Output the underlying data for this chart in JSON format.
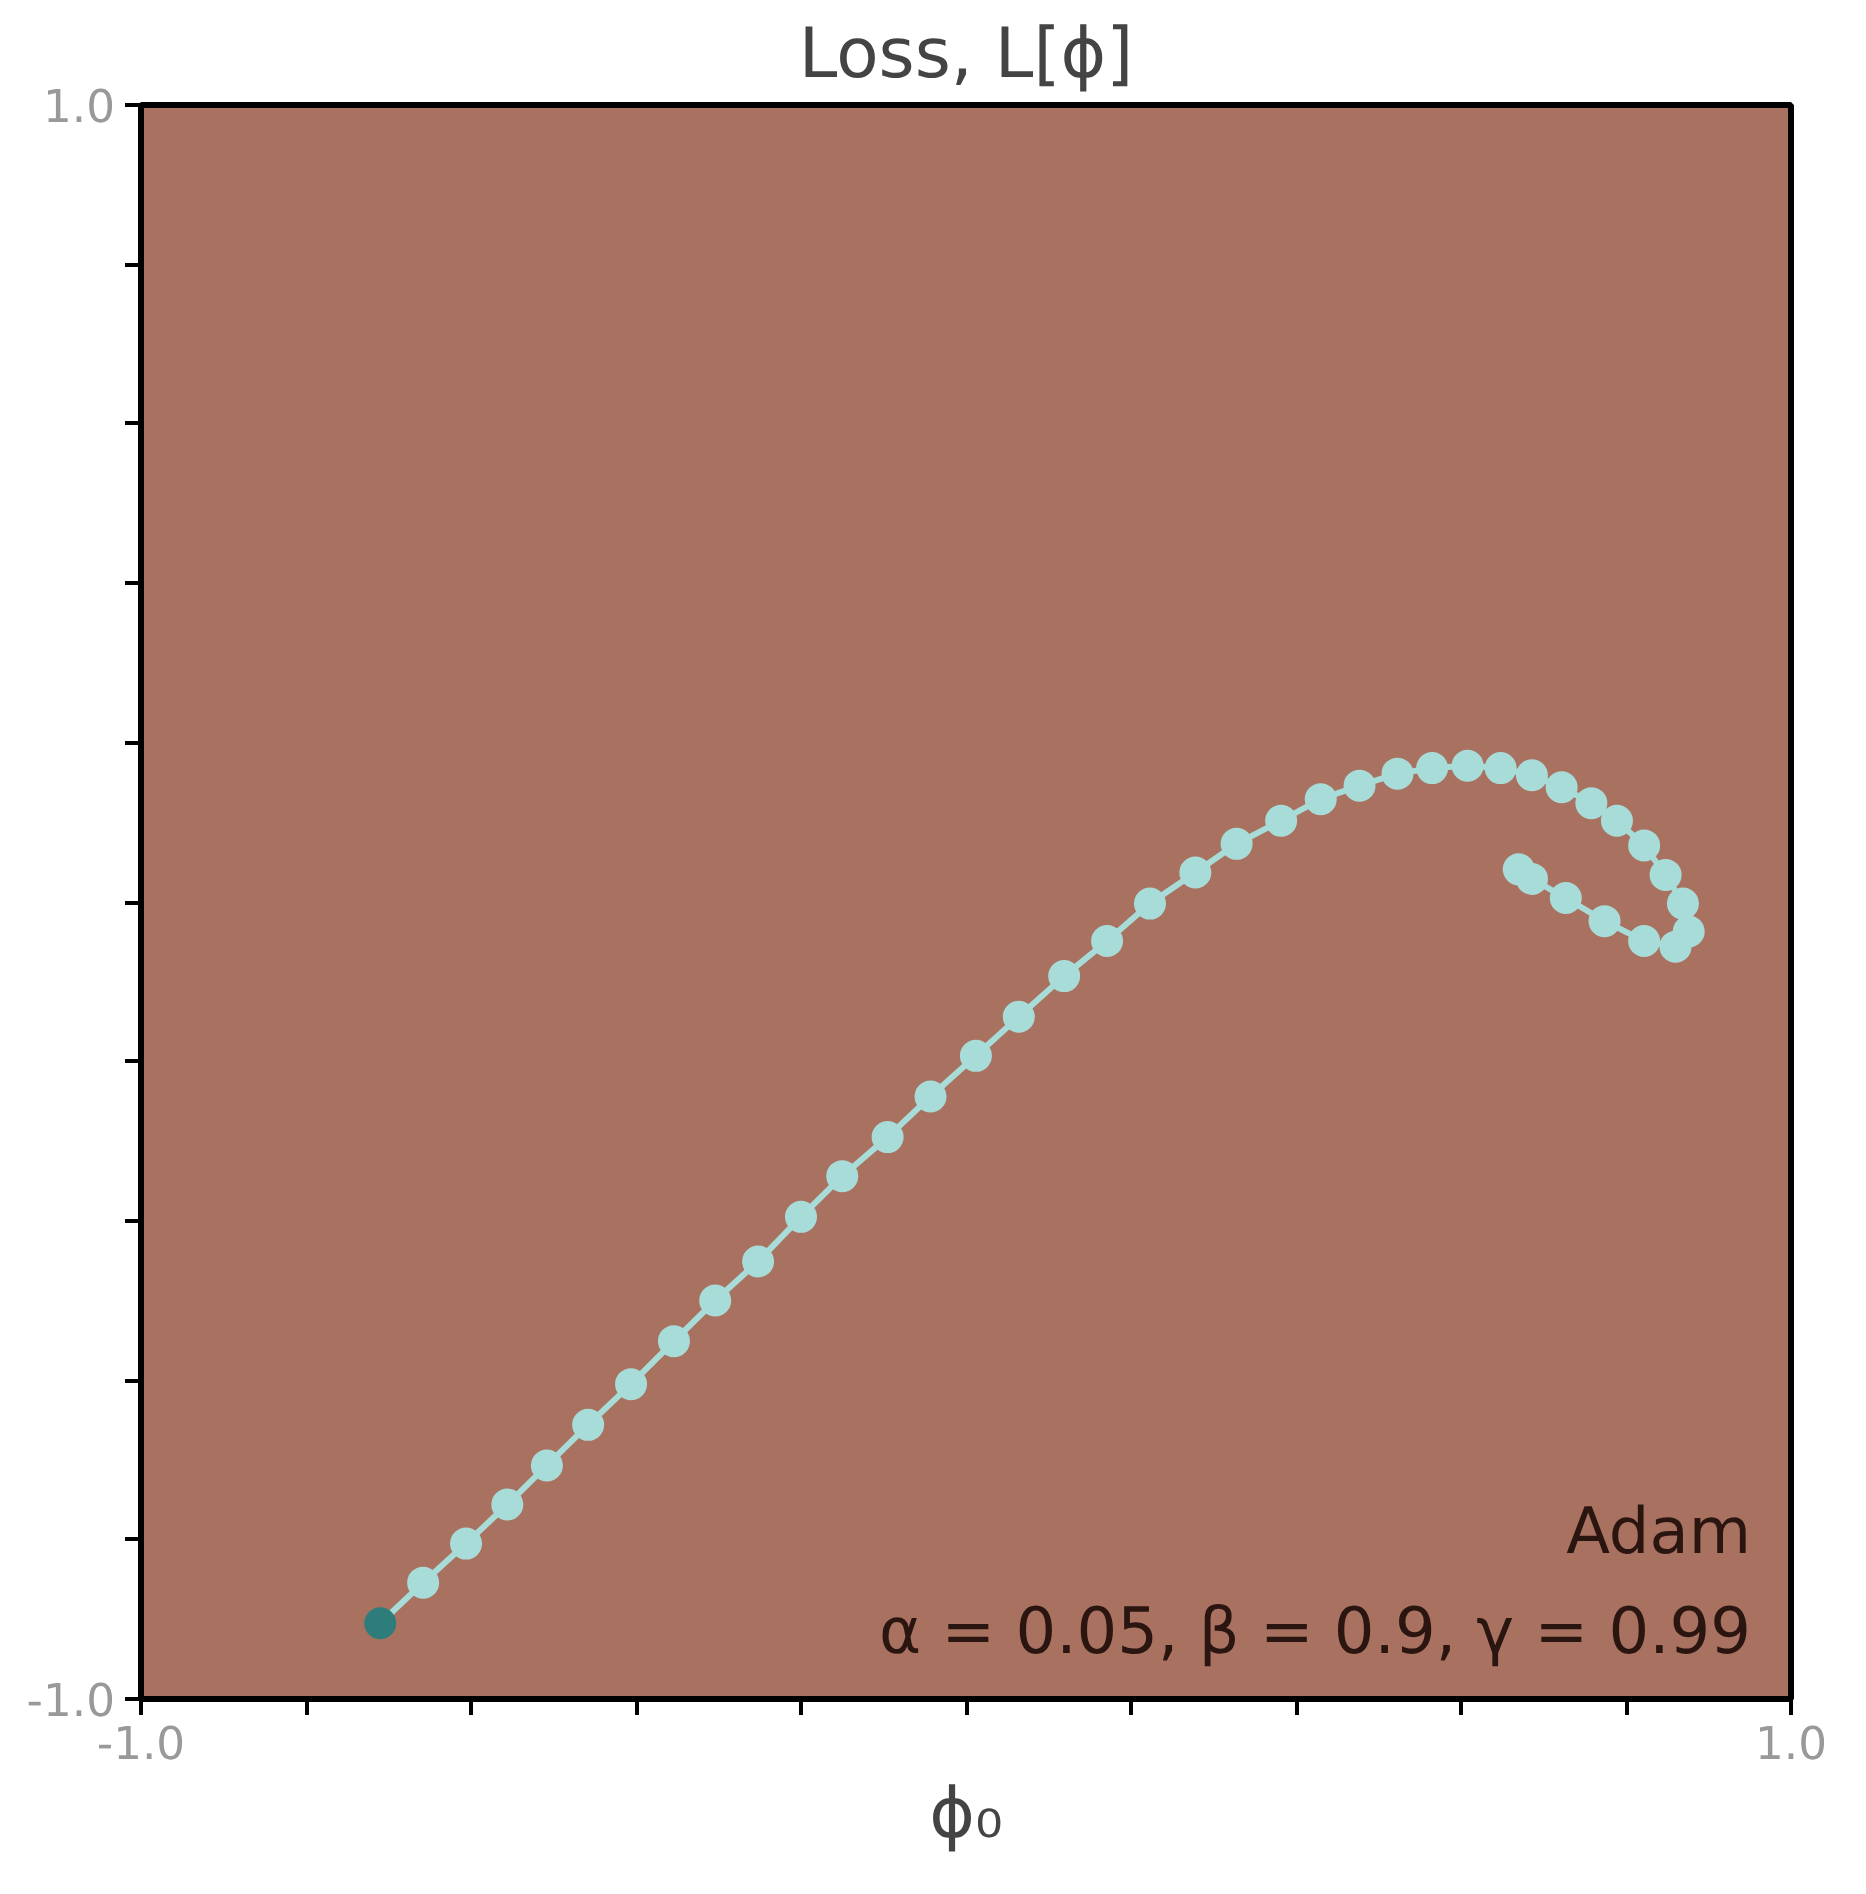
{
  "chart_data": {
    "type": "line",
    "title": "Loss, L[ϕ]",
    "xlabel": "ϕ₀",
    "xlim": [
      -1.0,
      1.0
    ],
    "ylim": [
      -1.0,
      1.0
    ],
    "xticks": [
      {
        "value": -1.0,
        "label": "-1.0"
      },
      {
        "value": -0.8,
        "label": null
      },
      {
        "value": -0.6,
        "label": null
      },
      {
        "value": -0.4,
        "label": null
      },
      {
        "value": -0.2,
        "label": null
      },
      {
        "value": 0.0,
        "label": null
      },
      {
        "value": 0.2,
        "label": null
      },
      {
        "value": 0.4,
        "label": null
      },
      {
        "value": 0.6,
        "label": null
      },
      {
        "value": 0.8,
        "label": null
      },
      {
        "value": 1.0,
        "label": "1.0"
      }
    ],
    "yticks": [
      {
        "value": -1.0,
        "label": "-1.0"
      },
      {
        "value": -0.8,
        "label": null
      },
      {
        "value": -0.6,
        "label": null
      },
      {
        "value": -0.4,
        "label": null
      },
      {
        "value": -0.2,
        "label": null
      },
      {
        "value": 0.0,
        "label": null
      },
      {
        "value": 0.2,
        "label": null
      },
      {
        "value": 0.4,
        "label": null
      },
      {
        "value": 0.6,
        "label": null
      },
      {
        "value": 0.8,
        "label": null
      },
      {
        "value": 1.0,
        "label": "1.0"
      }
    ],
    "grid": false,
    "marker": "circle",
    "line_style": "solid",
    "annotations": [
      "Adam",
      "α = 0.05, β = 0.9, γ = 0.99"
    ],
    "series": [
      {
        "color": "#a8dcd9",
        "colors": [
          "#2e7d7b",
          "#a8dcd9",
          "#a8dcd9",
          "#a8dcd9",
          "#a8dcd9",
          "#a8dcd9",
          "#a8dcd9",
          "#a8dcd9",
          "#a8dcd9",
          "#a8dcd9",
          "#a8dcd9",
          "#a8dcd9",
          "#a8dcd9",
          "#a8dcd9",
          "#a8dcd9",
          "#a8dcd9",
          "#a8dcd9",
          "#a8dcd9",
          "#a8dcd9",
          "#a8dcd9",
          "#a8dcd9",
          "#a8dcd9",
          "#a8dcd9",
          "#a8dcd9",
          "#a8dcd9",
          "#a8dcd9",
          "#a8dcd9",
          "#a8dcd9",
          "#a8dcd9",
          "#a8dcd9",
          "#a8dcd9",
          "#a8dcd9",
          "#a8dcd9",
          "#a8dcd9",
          "#a8dcd9",
          "#a8dcd9",
          "#a8dcd9",
          "#a8dcd9",
          "#a8dcd9",
          "#a8dcd9",
          "#a8dcd9",
          "#a8dcd9"
        ],
        "x": [
          -0.71,
          -0.658,
          -0.606,
          -0.556,
          -0.508,
          -0.458,
          -0.406,
          -0.354,
          -0.304,
          -0.252,
          -0.2,
          -0.15,
          -0.095,
          -0.043,
          0.012,
          0.064,
          0.119,
          0.171,
          0.223,
          0.278,
          0.328,
          0.382,
          0.43,
          0.477,
          0.523,
          0.565,
          0.608,
          0.648,
          0.686,
          0.722,
          0.758,
          0.789,
          0.822,
          0.848,
          0.869,
          0.876,
          0.86,
          0.822,
          0.774,
          0.727,
          0.686,
          0.67
        ],
        "values": [
          -0.905,
          -0.854,
          -0.805,
          -0.756,
          -0.707,
          -0.656,
          -0.605,
          -0.551,
          -0.5,
          -0.451,
          -0.395,
          -0.344,
          -0.295,
          -0.244,
          -0.193,
          -0.144,
          -0.093,
          -0.049,
          -0.002,
          0.037,
          0.073,
          0.102,
          0.129,
          0.146,
          0.161,
          0.168,
          0.171,
          0.168,
          0.159,
          0.144,
          0.124,
          0.102,
          0.071,
          0.034,
          -0.002,
          -0.037,
          -0.056,
          -0.049,
          -0.024,
          0.005,
          0.029,
          0.041
        ]
      }
    ]
  }
}
